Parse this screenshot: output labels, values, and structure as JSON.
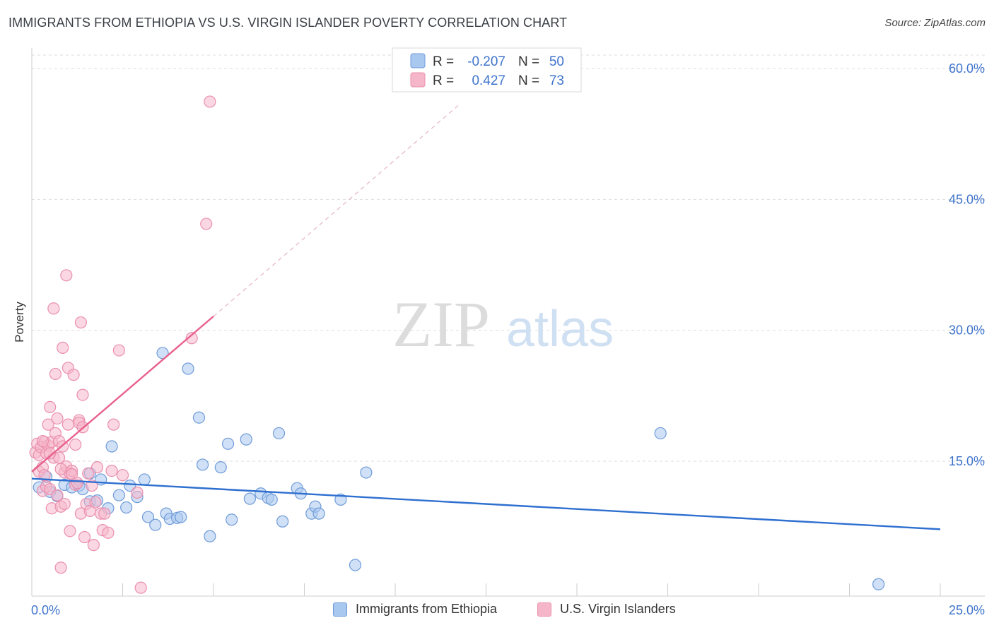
{
  "header": {
    "title": "IMMIGRANTS FROM ETHIOPIA VS U.S. VIRGIN ISLANDER POVERTY CORRELATION CHART",
    "source": "Source: ZipAtlas.com"
  },
  "watermark": {
    "zip": "ZIP",
    "atlas": "atlas"
  },
  "colors": {
    "blue_fill": "#a9c8f0",
    "blue_stroke": "#6f9bd8",
    "blue_line": "#2e6fd0",
    "pink_fill": "#f5b6ca",
    "pink_stroke": "#ea8fae",
    "pink_line": "#e8608c",
    "axis_text": "#3f74cc",
    "grid": "#dddddd"
  },
  "legend_top": {
    "rows": [
      {
        "r_label": "R =",
        "r_value": "-0.207",
        "n_label": "N =",
        "n_value": "50"
      },
      {
        "r_label": "R =",
        "r_value": "0.427",
        "n_label": "N =",
        "n_value": "73"
      }
    ]
  },
  "chart_data": {
    "type": "scatter",
    "title": "IMMIGRANTS FROM ETHIOPIA VS U.S. VIRGIN ISLANDER POVERTY CORRELATION CHART",
    "xlabel": "",
    "ylabel": "Poverty",
    "xlim": [
      0,
      25
    ],
    "ylim": [
      0,
      62
    ],
    "x_tick_labels": {
      "left": "0.0%",
      "right": "25.0%"
    },
    "y_ticks": [
      {
        "value": 15,
        "label": "15.0%"
      },
      {
        "value": 30,
        "label": "30.0%"
      },
      {
        "value": 45,
        "label": "45.0%"
      },
      {
        "value": 60,
        "label": "60.0%"
      }
    ],
    "grid": true,
    "series": [
      {
        "name": "Immigrants from Ethiopia",
        "color": "blue",
        "points": [
          [
            0.2,
            12.0
          ],
          [
            0.4,
            13.2
          ],
          [
            0.5,
            11.5
          ],
          [
            0.7,
            11.0
          ],
          [
            0.9,
            12.3
          ],
          [
            1.1,
            12.0
          ],
          [
            1.3,
            12.2
          ],
          [
            1.4,
            11.8
          ],
          [
            1.6,
            10.4
          ],
          [
            1.6,
            13.6
          ],
          [
            1.8,
            10.5
          ],
          [
            1.9,
            12.9
          ],
          [
            2.1,
            9.6
          ],
          [
            2.2,
            16.7
          ],
          [
            2.4,
            11.1
          ],
          [
            2.6,
            9.7
          ],
          [
            2.7,
            12.2
          ],
          [
            2.9,
            10.9
          ],
          [
            3.1,
            12.9
          ],
          [
            3.2,
            8.6
          ],
          [
            3.4,
            7.7
          ],
          [
            3.6,
            27.4
          ],
          [
            3.7,
            9.0
          ],
          [
            3.8,
            8.4
          ],
          [
            4.0,
            8.5
          ],
          [
            4.1,
            8.6
          ],
          [
            4.3,
            25.6
          ],
          [
            4.6,
            20.0
          ],
          [
            4.7,
            14.6
          ],
          [
            4.9,
            6.4
          ],
          [
            5.2,
            14.3
          ],
          [
            5.4,
            17.0
          ],
          [
            5.5,
            8.3
          ],
          [
            5.9,
            17.5
          ],
          [
            6.0,
            10.7
          ],
          [
            6.3,
            11.3
          ],
          [
            6.5,
            10.8
          ],
          [
            6.6,
            10.6
          ],
          [
            6.8,
            18.2
          ],
          [
            6.9,
            8.1
          ],
          [
            7.3,
            11.9
          ],
          [
            7.4,
            11.3
          ],
          [
            7.7,
            9.0
          ],
          [
            7.8,
            9.8
          ],
          [
            7.9,
            9.0
          ],
          [
            8.5,
            10.6
          ],
          [
            8.9,
            3.1
          ],
          [
            9.2,
            13.7
          ],
          [
            17.3,
            18.2
          ],
          [
            23.3,
            0.9
          ]
        ]
      },
      {
        "name": "U.S. Virgin Islanders",
        "color": "pink",
        "points": [
          [
            0.1,
            16.0
          ],
          [
            0.15,
            17.0
          ],
          [
            0.2,
            15.7
          ],
          [
            0.2,
            13.8
          ],
          [
            0.25,
            16.6
          ],
          [
            0.3,
            11.6
          ],
          [
            0.3,
            14.3
          ],
          [
            0.35,
            17.2
          ],
          [
            0.35,
            13.4
          ],
          [
            0.4,
            12.1
          ],
          [
            0.4,
            15.9
          ],
          [
            0.45,
            19.2
          ],
          [
            0.45,
            16.8
          ],
          [
            0.5,
            21.2
          ],
          [
            0.5,
            11.8
          ],
          [
            0.55,
            17.2
          ],
          [
            0.55,
            9.6
          ],
          [
            0.6,
            32.5
          ],
          [
            0.6,
            15.4
          ],
          [
            0.65,
            18.2
          ],
          [
            0.65,
            25.0
          ],
          [
            0.7,
            19.9
          ],
          [
            0.7,
            11.1
          ],
          [
            0.75,
            17.3
          ],
          [
            0.75,
            15.4
          ],
          [
            0.8,
            2.8
          ],
          [
            0.8,
            9.8
          ],
          [
            0.85,
            28.0
          ],
          [
            0.85,
            16.7
          ],
          [
            0.9,
            10.1
          ],
          [
            0.9,
            13.7
          ],
          [
            0.95,
            36.3
          ],
          [
            0.95,
            14.4
          ],
          [
            1.0,
            25.7
          ],
          [
            1.0,
            19.2
          ],
          [
            1.05,
            13.6
          ],
          [
            1.05,
            7.0
          ],
          [
            1.1,
            13.9
          ],
          [
            1.1,
            13.5
          ],
          [
            1.15,
            24.9
          ],
          [
            1.2,
            16.9
          ],
          [
            1.2,
            12.3
          ],
          [
            1.25,
            12.5
          ],
          [
            1.3,
            19.7
          ],
          [
            1.3,
            19.4
          ],
          [
            1.35,
            30.9
          ],
          [
            1.35,
            9.0
          ],
          [
            1.4,
            22.6
          ],
          [
            1.4,
            18.9
          ],
          [
            1.45,
            6.3
          ],
          [
            1.5,
            10.1
          ],
          [
            1.55,
            13.6
          ],
          [
            1.6,
            9.3
          ],
          [
            1.65,
            12.2
          ],
          [
            1.7,
            5.4
          ],
          [
            1.75,
            10.3
          ],
          [
            1.8,
            14.3
          ],
          [
            1.9,
            9.0
          ],
          [
            1.95,
            7.1
          ],
          [
            2.0,
            9.0
          ],
          [
            2.1,
            6.8
          ],
          [
            2.2,
            13.9
          ],
          [
            2.25,
            19.2
          ],
          [
            2.4,
            27.7
          ],
          [
            2.5,
            13.4
          ],
          [
            2.9,
            11.4
          ],
          [
            3.0,
            0.5
          ],
          [
            4.4,
            29.1
          ],
          [
            4.8,
            42.2
          ],
          [
            4.9,
            56.2
          ],
          [
            0.3,
            17.3
          ],
          [
            0.5,
            15.9
          ],
          [
            0.8,
            14.1
          ]
        ]
      }
    ],
    "trend_lines": [
      {
        "series": "Immigrants from Ethiopia",
        "x_start": 0.0,
        "y_start": 13.0,
        "x_end": 25.0,
        "y_end": 7.2,
        "style": "solid"
      },
      {
        "series": "U.S. Virgin Islanders",
        "x_start": 0.0,
        "y_start": 13.8,
        "x_end": 5.0,
        "y_end": 31.6,
        "style": "solid"
      },
      {
        "series": "U.S. Virgin Islanders",
        "x_start": 5.0,
        "y_start": 31.6,
        "x_end": 11.8,
        "y_end": 56.0,
        "style": "dashed"
      }
    ]
  },
  "legend_bottom": {
    "items": [
      {
        "label": "Immigrants from Ethiopia",
        "color": "blue"
      },
      {
        "label": "U.S. Virgin Islanders",
        "color": "pink"
      }
    ]
  }
}
